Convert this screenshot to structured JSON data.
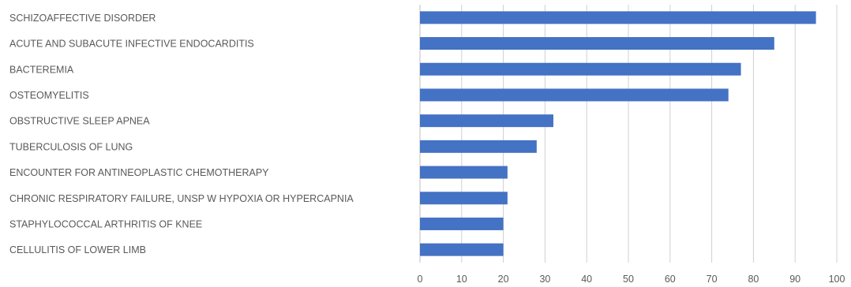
{
  "chart_data": {
    "type": "bar",
    "orientation": "horizontal",
    "title": "",
    "xlabel": "",
    "ylabel": "",
    "categories": [
      "SCHIZOAFFECTIVE DISORDER",
      "ACUTE AND SUBACUTE INFECTIVE ENDOCARDITIS",
      "BACTEREMIA",
      "OSTEOMYELITIS",
      "OBSTRUCTIVE SLEEP APNEA",
      "TUBERCULOSIS OF LUNG",
      "ENCOUNTER FOR ANTINEOPLASTIC CHEMOTHERAPY",
      "CHRONIC RESPIRATORY FAILURE, UNSP W HYPOXIA OR HYPERCAPNIA",
      "STAPHYLOCOCCAL ARTHRITIS OF KNEE",
      "CELLULITIS OF  LOWER LIMB"
    ],
    "values": [
      95,
      85,
      77,
      74,
      32,
      28,
      21,
      21,
      20,
      20
    ],
    "xlim": [
      0,
      100
    ],
    "xticks": [
      "0",
      "10",
      "20",
      "30",
      "40",
      "50",
      "60",
      "70",
      "80",
      "90",
      "100"
    ],
    "grid": true,
    "legend": "none",
    "bar_color": "#4472c4"
  }
}
